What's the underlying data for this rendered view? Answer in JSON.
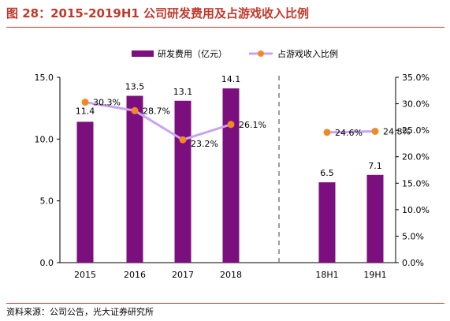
{
  "title": "图 28：2015-2019H1 公司研发费用及占游戏收入比例",
  "source": "资料来源：公司公告，光大证券研究所",
  "colors": {
    "bar": "#7b0f7e",
    "line": "#c9a3f0",
    "marker": "#f08a24",
    "accent": "#c0392b",
    "divider": "#7f7f7f"
  },
  "chart_data": {
    "type": "bar",
    "categories": [
      "2015",
      "2016",
      "2017",
      "2018",
      "18H1",
      "19H1"
    ],
    "series": [
      {
        "name": "研发费用（亿元）",
        "type": "bar",
        "axis": "left",
        "values": [
          11.4,
          13.5,
          13.1,
          14.1,
          6.5,
          7.1
        ],
        "labels": [
          "11.4",
          "13.5",
          "13.1",
          "14.1",
          "6.5",
          "7.1"
        ]
      },
      {
        "name": "占游戏收入比例",
        "type": "line",
        "axis": "right",
        "values": [
          30.3,
          28.7,
          23.2,
          26.1,
          24.6,
          24.8
        ],
        "labels": [
          "30.3%",
          "28.7%",
          "23.2%",
          "26.1%",
          "24.6%",
          "24.8%"
        ]
      }
    ],
    "line_segments": [
      [
        0,
        1,
        2,
        3
      ],
      [
        4,
        5
      ]
    ],
    "y_left": {
      "ylim": [
        0,
        15
      ],
      "ticks": [
        "0.0",
        "5.0",
        "10.0",
        "15.0"
      ],
      "tick_values": [
        0,
        5,
        10,
        15
      ]
    },
    "y_right": {
      "ylim": [
        0,
        35
      ],
      "ticks": [
        "0.0%",
        "5.0%",
        "10.0%",
        "15.0%",
        "20.0%",
        "25.0%",
        "30.0%",
        "35.0%"
      ],
      "tick_values": [
        0,
        5,
        10,
        15,
        20,
        25,
        30,
        35
      ]
    },
    "legend_position": "top-center",
    "grid": false,
    "divider_between": [
      "2018",
      "18H1"
    ]
  }
}
